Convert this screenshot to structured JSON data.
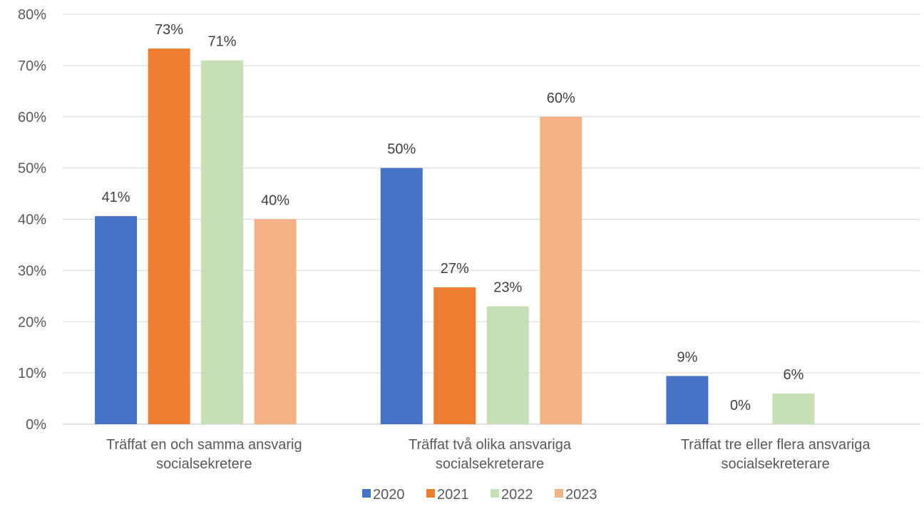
{
  "chart_data": {
    "type": "bar",
    "ylim": [
      0,
      80
    ],
    "y_tick_values": [
      0,
      10,
      20,
      30,
      40,
      50,
      60,
      70,
      80
    ],
    "y_tick_suffix": "%",
    "grid": true,
    "legend_position": "bottom",
    "categories": [
      [
        "Träffat en och samma ansvarig",
        "socialsekretere"
      ],
      [
        "Träffat två olika ansvariga",
        "socialsekreterare"
      ],
      [
        "Träffat tre eller flera ansvariga",
        "socialsekreterare"
      ]
    ],
    "series": [
      {
        "name": "2020",
        "color": "#4472C4",
        "values": [
          40.6,
          50,
          9.4
        ],
        "labels": [
          "41%",
          "50%",
          "9%"
        ]
      },
      {
        "name": "2021",
        "color": "#ED7D31",
        "values": [
          73.3,
          26.7,
          0
        ],
        "labels": [
          "73%",
          "27%",
          "0%"
        ]
      },
      {
        "name": "2022",
        "color": "#C5E0B4",
        "values": [
          71,
          23,
          6
        ],
        "labels": [
          "71%",
          "23%",
          "6%"
        ]
      },
      {
        "name": "2023",
        "color": "#F4B183",
        "values": [
          40,
          60,
          null
        ],
        "labels": [
          "40%",
          "60%",
          null
        ]
      }
    ]
  }
}
